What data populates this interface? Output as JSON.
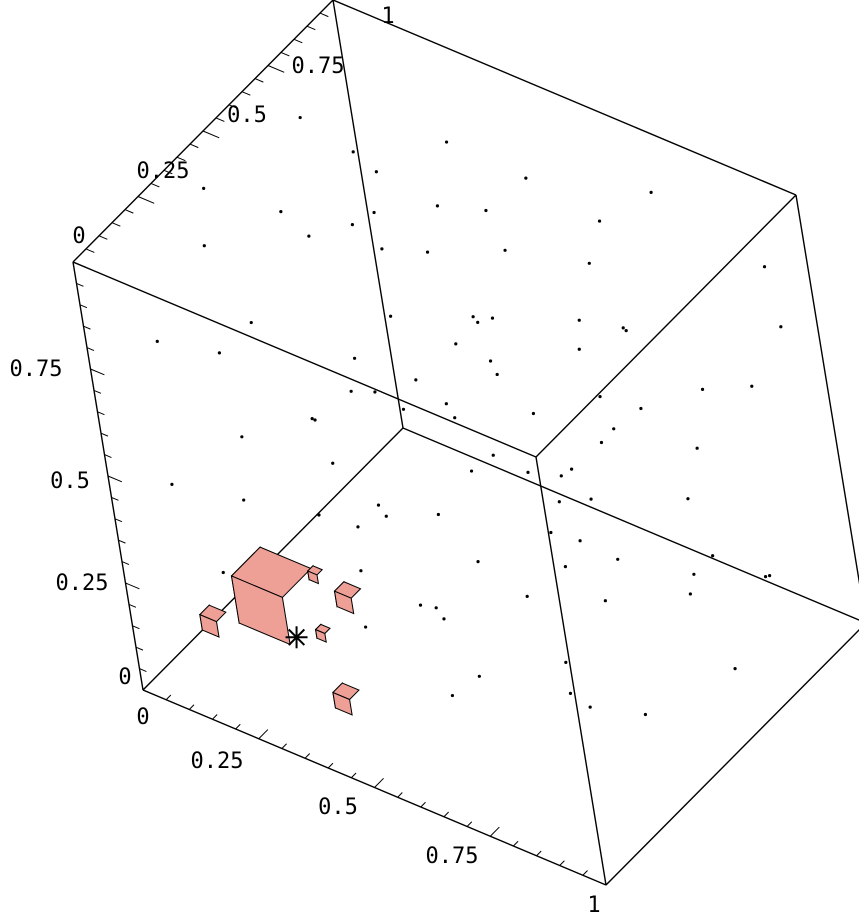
{
  "chart_data": {
    "type": "scatter",
    "title": "",
    "axes": {
      "x": {
        "range": [
          0,
          1
        ],
        "tick_labels": [
          "0",
          "0.25",
          "0.5",
          "0.75",
          "1"
        ]
      },
      "y": {
        "range": [
          0,
          1
        ],
        "tick_labels": [
          "0",
          "0.25",
          "0.5",
          "0.75",
          "1"
        ]
      },
      "z": {
        "range": [
          0,
          1
        ],
        "tick_labels": [
          "0",
          "0.25",
          "0.5",
          "0.75"
        ]
      }
    },
    "box": true,
    "grid": false,
    "colors": {
      "cube_light": "#eea096",
      "cube_dark": "#5a2c8c",
      "point": "#000000"
    },
    "query_point": {
      "marker": "asterisk",
      "x": 0.32,
      "y": 0.08,
      "z": 0.22
    },
    "neighbor_cubes": [
      {
        "x": 0.3,
        "y": 0.06,
        "z": 0.32,
        "size": "large"
      },
      {
        "x": 0.17,
        "y": 0.03,
        "z": 0.22,
        "size": "small"
      },
      {
        "x": 0.4,
        "y": 0.16,
        "z": 0.3,
        "size": "small"
      },
      {
        "x": 0.4,
        "y": 0.1,
        "z": 0.1,
        "size": "small"
      },
      {
        "x": 0.36,
        "y": 0.12,
        "z": 0.36,
        "size": "tiny"
      },
      {
        "x": 0.37,
        "y": 0.1,
        "z": 0.24,
        "size": "tiny"
      }
    ],
    "points": [
      [
        0.05,
        0.4,
        0.95
      ],
      [
        0.1,
        0.3,
        0.9
      ],
      [
        0.15,
        0.5,
        0.88
      ],
      [
        0.2,
        0.7,
        0.92
      ],
      [
        0.25,
        0.2,
        0.85
      ],
      [
        0.3,
        0.6,
        0.8
      ],
      [
        0.35,
        0.8,
        0.95
      ],
      [
        0.4,
        0.45,
        0.78
      ],
      [
        0.45,
        0.9,
        0.85
      ],
      [
        0.5,
        0.3,
        0.7
      ],
      [
        0.55,
        0.65,
        0.88
      ],
      [
        0.6,
        0.85,
        0.75
      ],
      [
        0.65,
        0.4,
        0.82
      ],
      [
        0.7,
        0.95,
        0.9
      ],
      [
        0.75,
        0.6,
        0.66
      ],
      [
        0.8,
        0.25,
        0.72
      ],
      [
        0.85,
        0.8,
        0.6
      ],
      [
        0.9,
        0.5,
        0.95
      ],
      [
        0.95,
        0.95,
        0.7
      ],
      [
        0.12,
        0.85,
        0.65
      ],
      [
        0.22,
        0.15,
        0.6
      ],
      [
        0.28,
        0.45,
        0.55
      ],
      [
        0.33,
        0.75,
        0.5
      ],
      [
        0.42,
        0.2,
        0.45
      ],
      [
        0.48,
        0.6,
        0.4
      ],
      [
        0.52,
        0.9,
        0.55
      ],
      [
        0.58,
        0.35,
        0.35
      ],
      [
        0.62,
        0.7,
        0.3
      ],
      [
        0.68,
        0.15,
        0.25
      ],
      [
        0.72,
        0.55,
        0.2
      ],
      [
        0.78,
        0.85,
        0.4
      ],
      [
        0.82,
        0.3,
        0.15
      ],
      [
        0.88,
        0.65,
        0.45
      ],
      [
        0.92,
        0.1,
        0.35
      ],
      [
        0.97,
        0.75,
        0.25
      ],
      [
        0.08,
        0.6,
        0.3
      ],
      [
        0.14,
        0.35,
        0.15
      ],
      [
        0.18,
        0.9,
        0.2
      ],
      [
        0.26,
        0.7,
        0.1
      ],
      [
        0.36,
        0.5,
        0.05
      ],
      [
        0.44,
        0.85,
        0.12
      ],
      [
        0.54,
        0.25,
        0.08
      ],
      [
        0.64,
        0.5,
        0.05
      ],
      [
        0.74,
        0.9,
        0.1
      ],
      [
        0.84,
        0.45,
        0.05
      ],
      [
        0.94,
        0.3,
        0.55
      ],
      [
        0.06,
        0.15,
        0.75
      ],
      [
        0.16,
        0.65,
        0.45
      ],
      [
        0.24,
        0.95,
        0.4
      ],
      [
        0.34,
        0.3,
        0.25
      ],
      [
        0.46,
        0.7,
        0.65
      ],
      [
        0.56,
        0.1,
        0.6
      ],
      [
        0.66,
        0.85,
        0.62
      ],
      [
        0.76,
        0.35,
        0.5
      ],
      [
        0.86,
        0.95,
        0.52
      ],
      [
        0.96,
        0.6,
        0.12
      ],
      [
        0.11,
        0.05,
        0.5
      ],
      [
        0.21,
        0.45,
        0.35
      ],
      [
        0.31,
        0.95,
        0.68
      ],
      [
        0.41,
        0.65,
        0.92
      ],
      [
        0.51,
        0.45,
        0.98
      ],
      [
        0.61,
        0.2,
        0.88
      ],
      [
        0.71,
        0.75,
        0.96
      ],
      [
        0.81,
        0.05,
        0.85
      ],
      [
        0.91,
        0.4,
        0.78
      ],
      [
        0.03,
        0.9,
        0.55
      ],
      [
        0.13,
        0.25,
        0.35
      ],
      [
        0.23,
        0.55,
        0.2
      ],
      [
        0.43,
        0.35,
        0.18
      ],
      [
        0.53,
        0.78,
        0.28
      ],
      [
        0.63,
        0.6,
        0.42
      ],
      [
        0.73,
        0.28,
        0.38
      ],
      [
        0.83,
        0.7,
        0.22
      ],
      [
        0.93,
        0.2,
        0.65
      ],
      [
        0.19,
        0.78,
        0.82
      ],
      [
        0.29,
        0.38,
        0.96
      ],
      [
        0.39,
        0.15,
        0.72
      ],
      [
        0.49,
        0.95,
        0.22
      ],
      [
        0.59,
        0.5,
        0.7
      ],
      [
        0.69,
        0.05,
        0.45
      ],
      [
        0.79,
        0.5,
        0.85
      ],
      [
        0.89,
        0.85,
        0.15
      ],
      [
        0.99,
        0.45,
        0.4
      ],
      [
        0.09,
        0.7,
        0.95
      ],
      [
        0.27,
        0.05,
        0.88
      ],
      [
        0.37,
        0.4,
        0.62
      ],
      [
        0.47,
        0.1,
        0.3
      ],
      [
        0.57,
        0.65,
        0.15
      ],
      [
        0.67,
        0.35,
        0.95
      ],
      [
        0.77,
        0.7,
        0.58
      ],
      [
        0.87,
        0.2,
        0.92
      ],
      [
        0.97,
        0.9,
        0.88
      ],
      [
        0.02,
        0.3,
        0.1
      ],
      [
        0.44,
        0.55,
        0.5
      ],
      [
        0.32,
        0.22,
        0.42
      ]
    ]
  }
}
